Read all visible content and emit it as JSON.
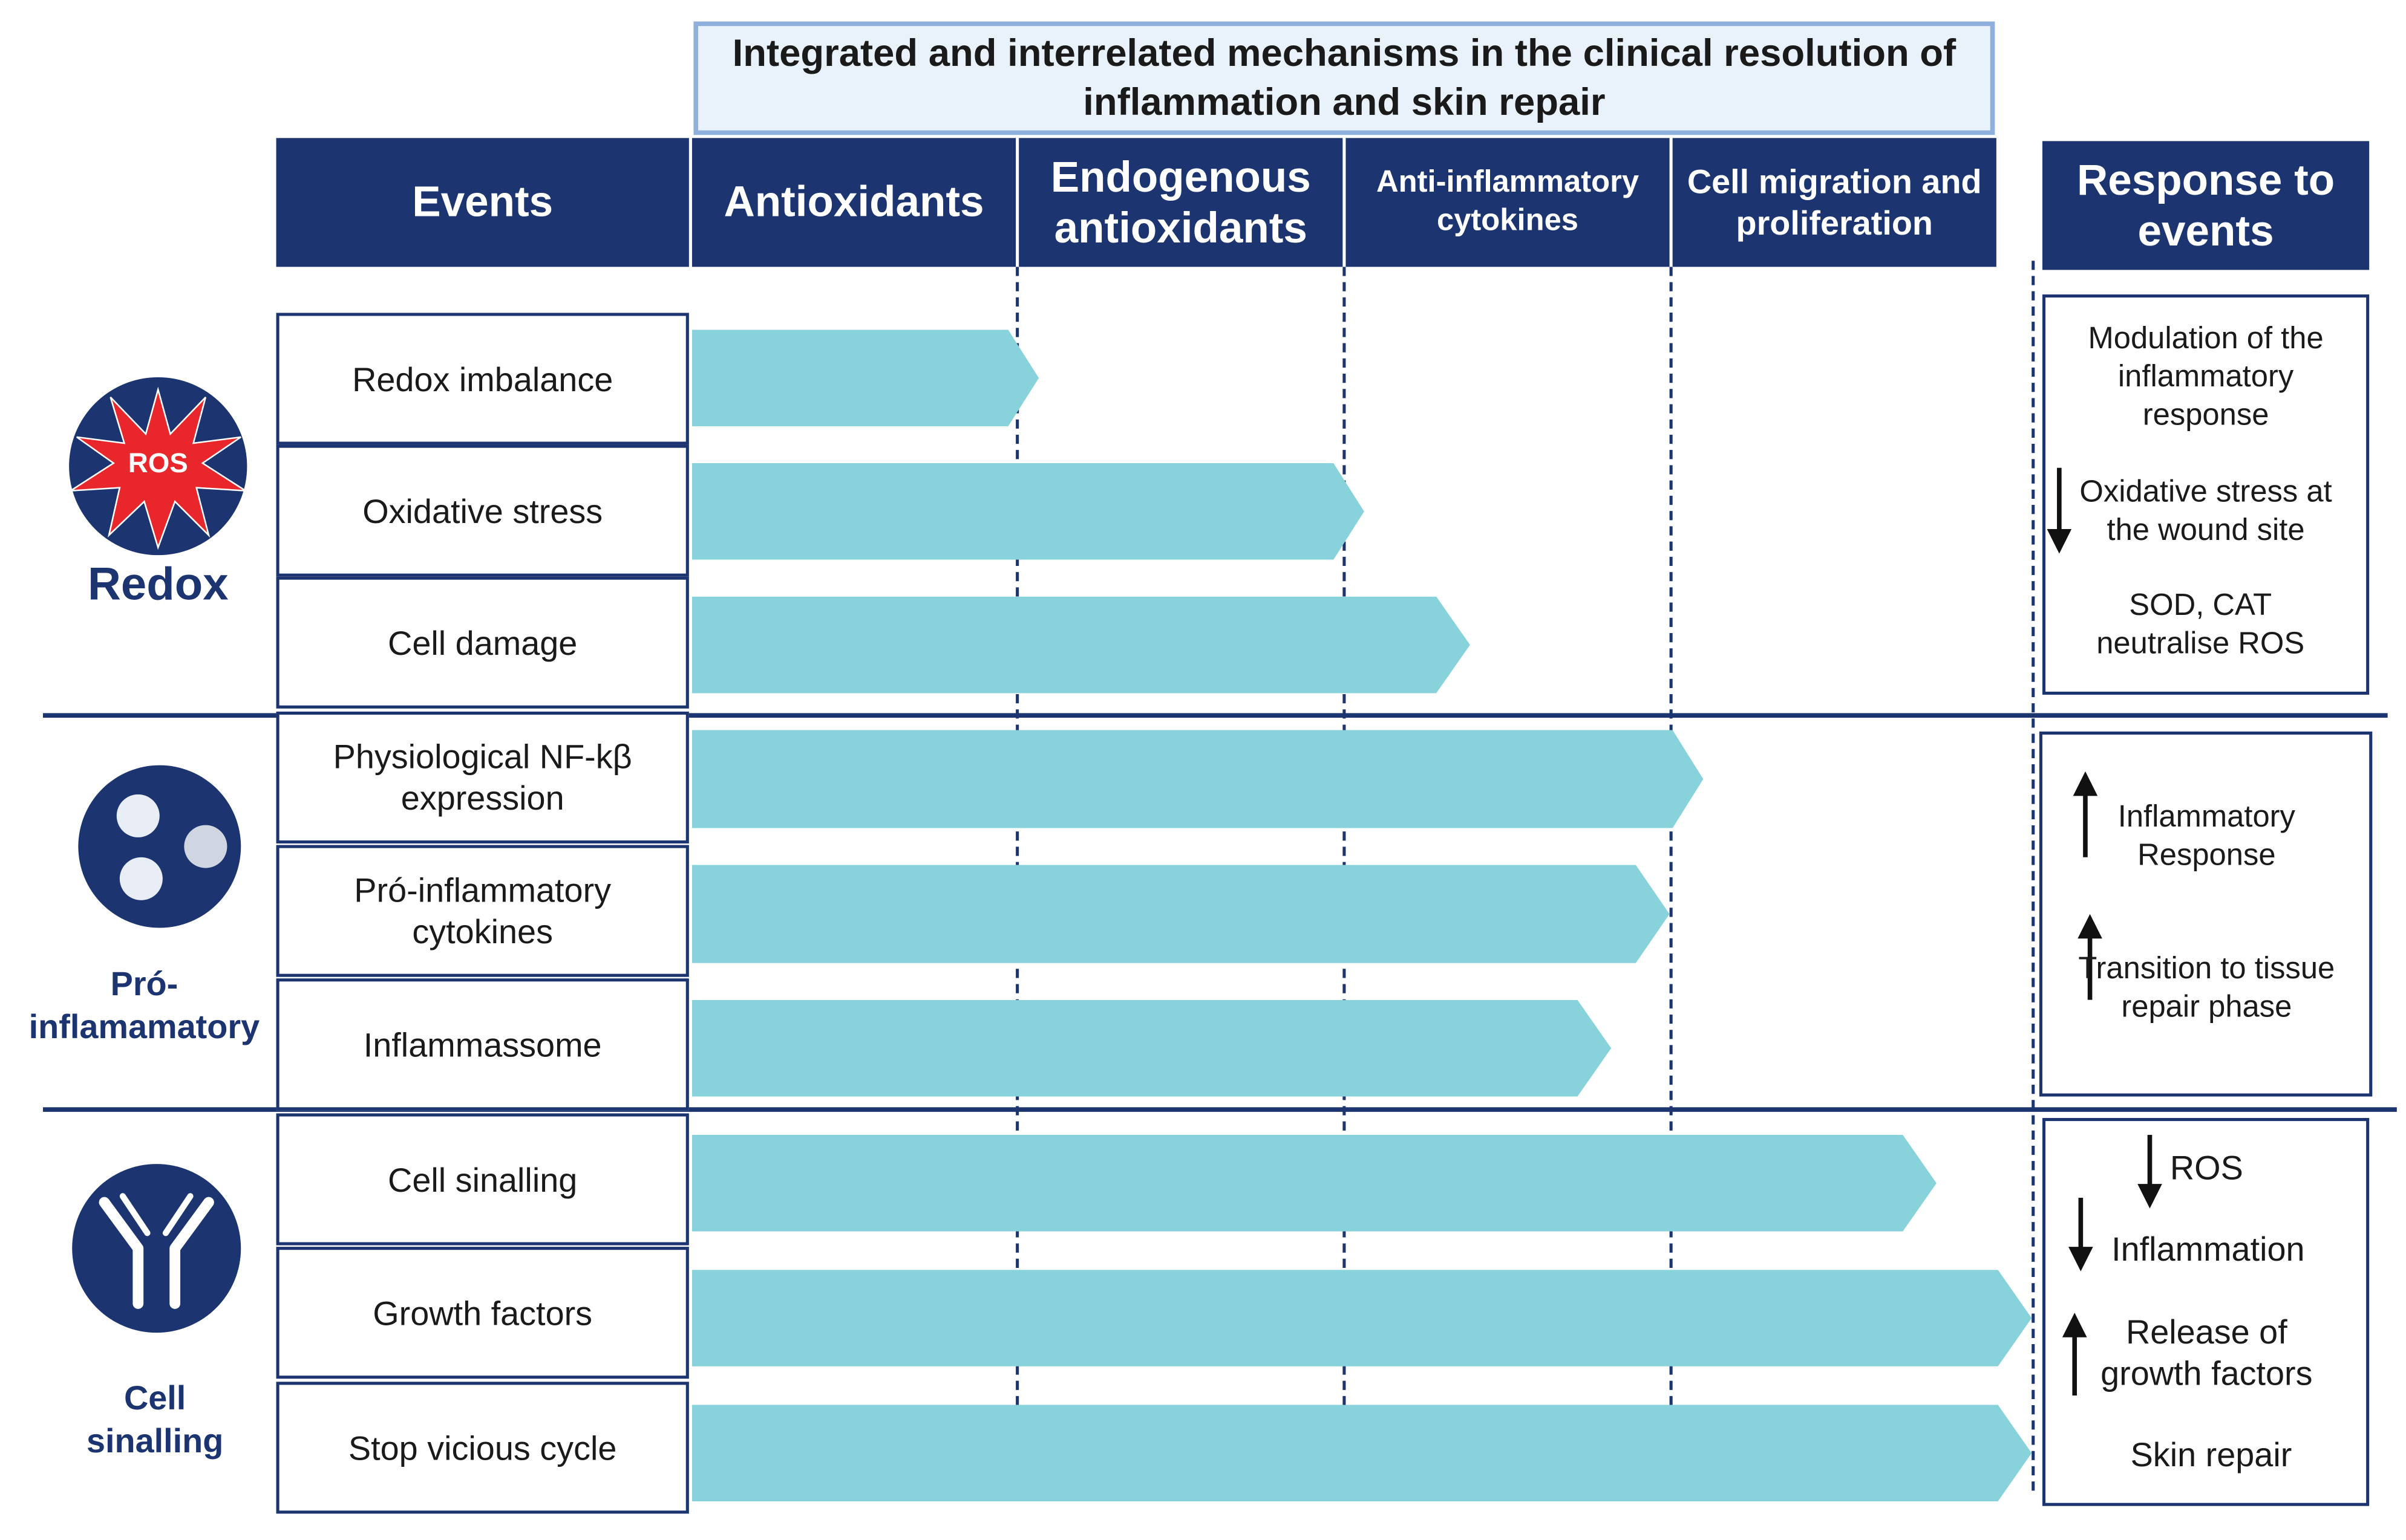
{
  "title": "Integrated and interrelated mechanisms in the clinical resolution of inflammation and skin repair",
  "headers": {
    "events": "Events",
    "antioxidants": "Antioxidants",
    "endogenous": "Endogenous antioxidants",
    "anti_inflammatory": "Anti-inflammatory cytokines",
    "cell_migration": "Cell migration and proliferation",
    "response": "Response to events"
  },
  "groups": [
    {
      "label": "Redox",
      "icon": "ros-starburst-icon",
      "icon_text": "ROS",
      "events": [
        "Redox imbalance",
        "Oxidative stress",
        "Cell damage"
      ],
      "responses": [
        {
          "text": "Modulation of the inflammatory response",
          "arrow": "none"
        },
        {
          "text": "Oxidative stress at the wound site",
          "arrow": "down"
        },
        {
          "text": "SOD, CAT neutralise ROS",
          "arrow": "none"
        }
      ]
    },
    {
      "label": "Pró-inflamamatory",
      "icon": "cells-in-circle-icon",
      "events": [
        "Physiological NF-kβ expression",
        "Pró-inflammatory cytokines",
        "Inflammassome"
      ],
      "responses": [
        {
          "text": "Inflammatory Response",
          "arrow": "up"
        },
        {
          "text": "Transition to tissue repair phase",
          "arrow": "up"
        }
      ]
    },
    {
      "label": "Cell sinalling",
      "icon": "antibody-icon",
      "events": [
        "Cell sinalling",
        "Growth factors",
        "Stop vicious cycle"
      ],
      "responses": [
        {
          "text": "ROS",
          "arrow": "down"
        },
        {
          "text": "Inflammation",
          "arrow": "down"
        },
        {
          "text": "Release of growth factors",
          "arrow": "up"
        },
        {
          "text": "Skin repair",
          "arrow": "none"
        }
      ]
    }
  ],
  "colors": {
    "navy": "#1c3570",
    "arrow_fill": "#88d2db",
    "title_bg": "#e9f2fb",
    "title_border": "#8fb0dc",
    "ros_red": "#e8262b"
  }
}
